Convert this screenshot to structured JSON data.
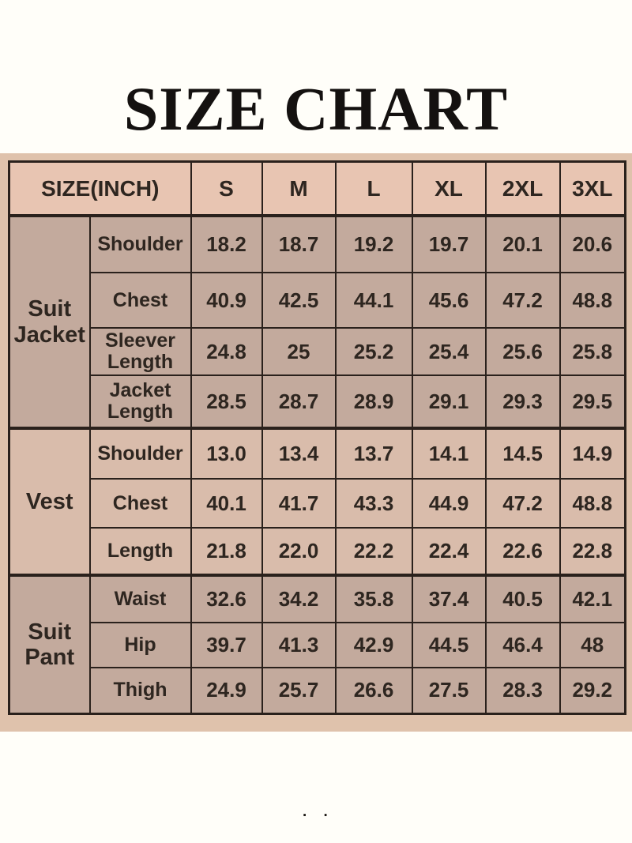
{
  "page": {
    "title": "SIZE CHART",
    "footer_marks": ". ."
  },
  "colors": {
    "page_bg": "#fffef9",
    "band": "#dfc2ac",
    "header_cell": "#e8c5b2",
    "cell_dark": "#c3aa9d",
    "cell_light": "#d9bcab",
    "border": "#2a211c",
    "text": "#2e2620",
    "title_text": "#141110"
  },
  "chart_data": {
    "type": "table",
    "title": "SIZE CHART",
    "unit_label": "SIZE(INCH)",
    "size_columns": [
      "S",
      "M",
      "L",
      "XL",
      "2XL",
      "3XL"
    ],
    "sections": [
      {
        "group": "Suit Jacket",
        "rows": [
          {
            "label": "Shoulder",
            "values": [
              "18.2",
              "18.7",
              "19.2",
              "19.7",
              "20.1",
              "20.6"
            ]
          },
          {
            "label": "Chest",
            "values": [
              "40.9",
              "42.5",
              "44.1",
              "45.6",
              "47.2",
              "48.8"
            ]
          },
          {
            "label": "Sleever Length",
            "values": [
              "24.8",
              "25",
              "25.2",
              "25.4",
              "25.6",
              "25.8"
            ]
          },
          {
            "label": "Jacket Length",
            "values": [
              "28.5",
              "28.7",
              "28.9",
              "29.1",
              "29.3",
              "29.5"
            ]
          }
        ]
      },
      {
        "group": "Vest",
        "rows": [
          {
            "label": "Shoulder",
            "values": [
              "13.0",
              "13.4",
              "13.7",
              "14.1",
              "14.5",
              "14.9"
            ]
          },
          {
            "label": "Chest",
            "values": [
              "40.1",
              "41.7",
              "43.3",
              "44.9",
              "47.2",
              "48.8"
            ]
          },
          {
            "label": "Length",
            "values": [
              "21.8",
              "22.0",
              "22.2",
              "22.4",
              "22.6",
              "22.8"
            ]
          }
        ]
      },
      {
        "group": "Suit Pant",
        "rows": [
          {
            "label": "Waist",
            "values": [
              "32.6",
              "34.2",
              "35.8",
              "37.4",
              "40.5",
              "42.1"
            ]
          },
          {
            "label": "Hip",
            "values": [
              "39.7",
              "41.3",
              "42.9",
              "44.5",
              "46.4",
              "48"
            ]
          },
          {
            "label": "Thigh",
            "values": [
              "24.9",
              "25.7",
              "26.6",
              "27.5",
              "28.3",
              "29.2"
            ]
          }
        ]
      }
    ]
  }
}
